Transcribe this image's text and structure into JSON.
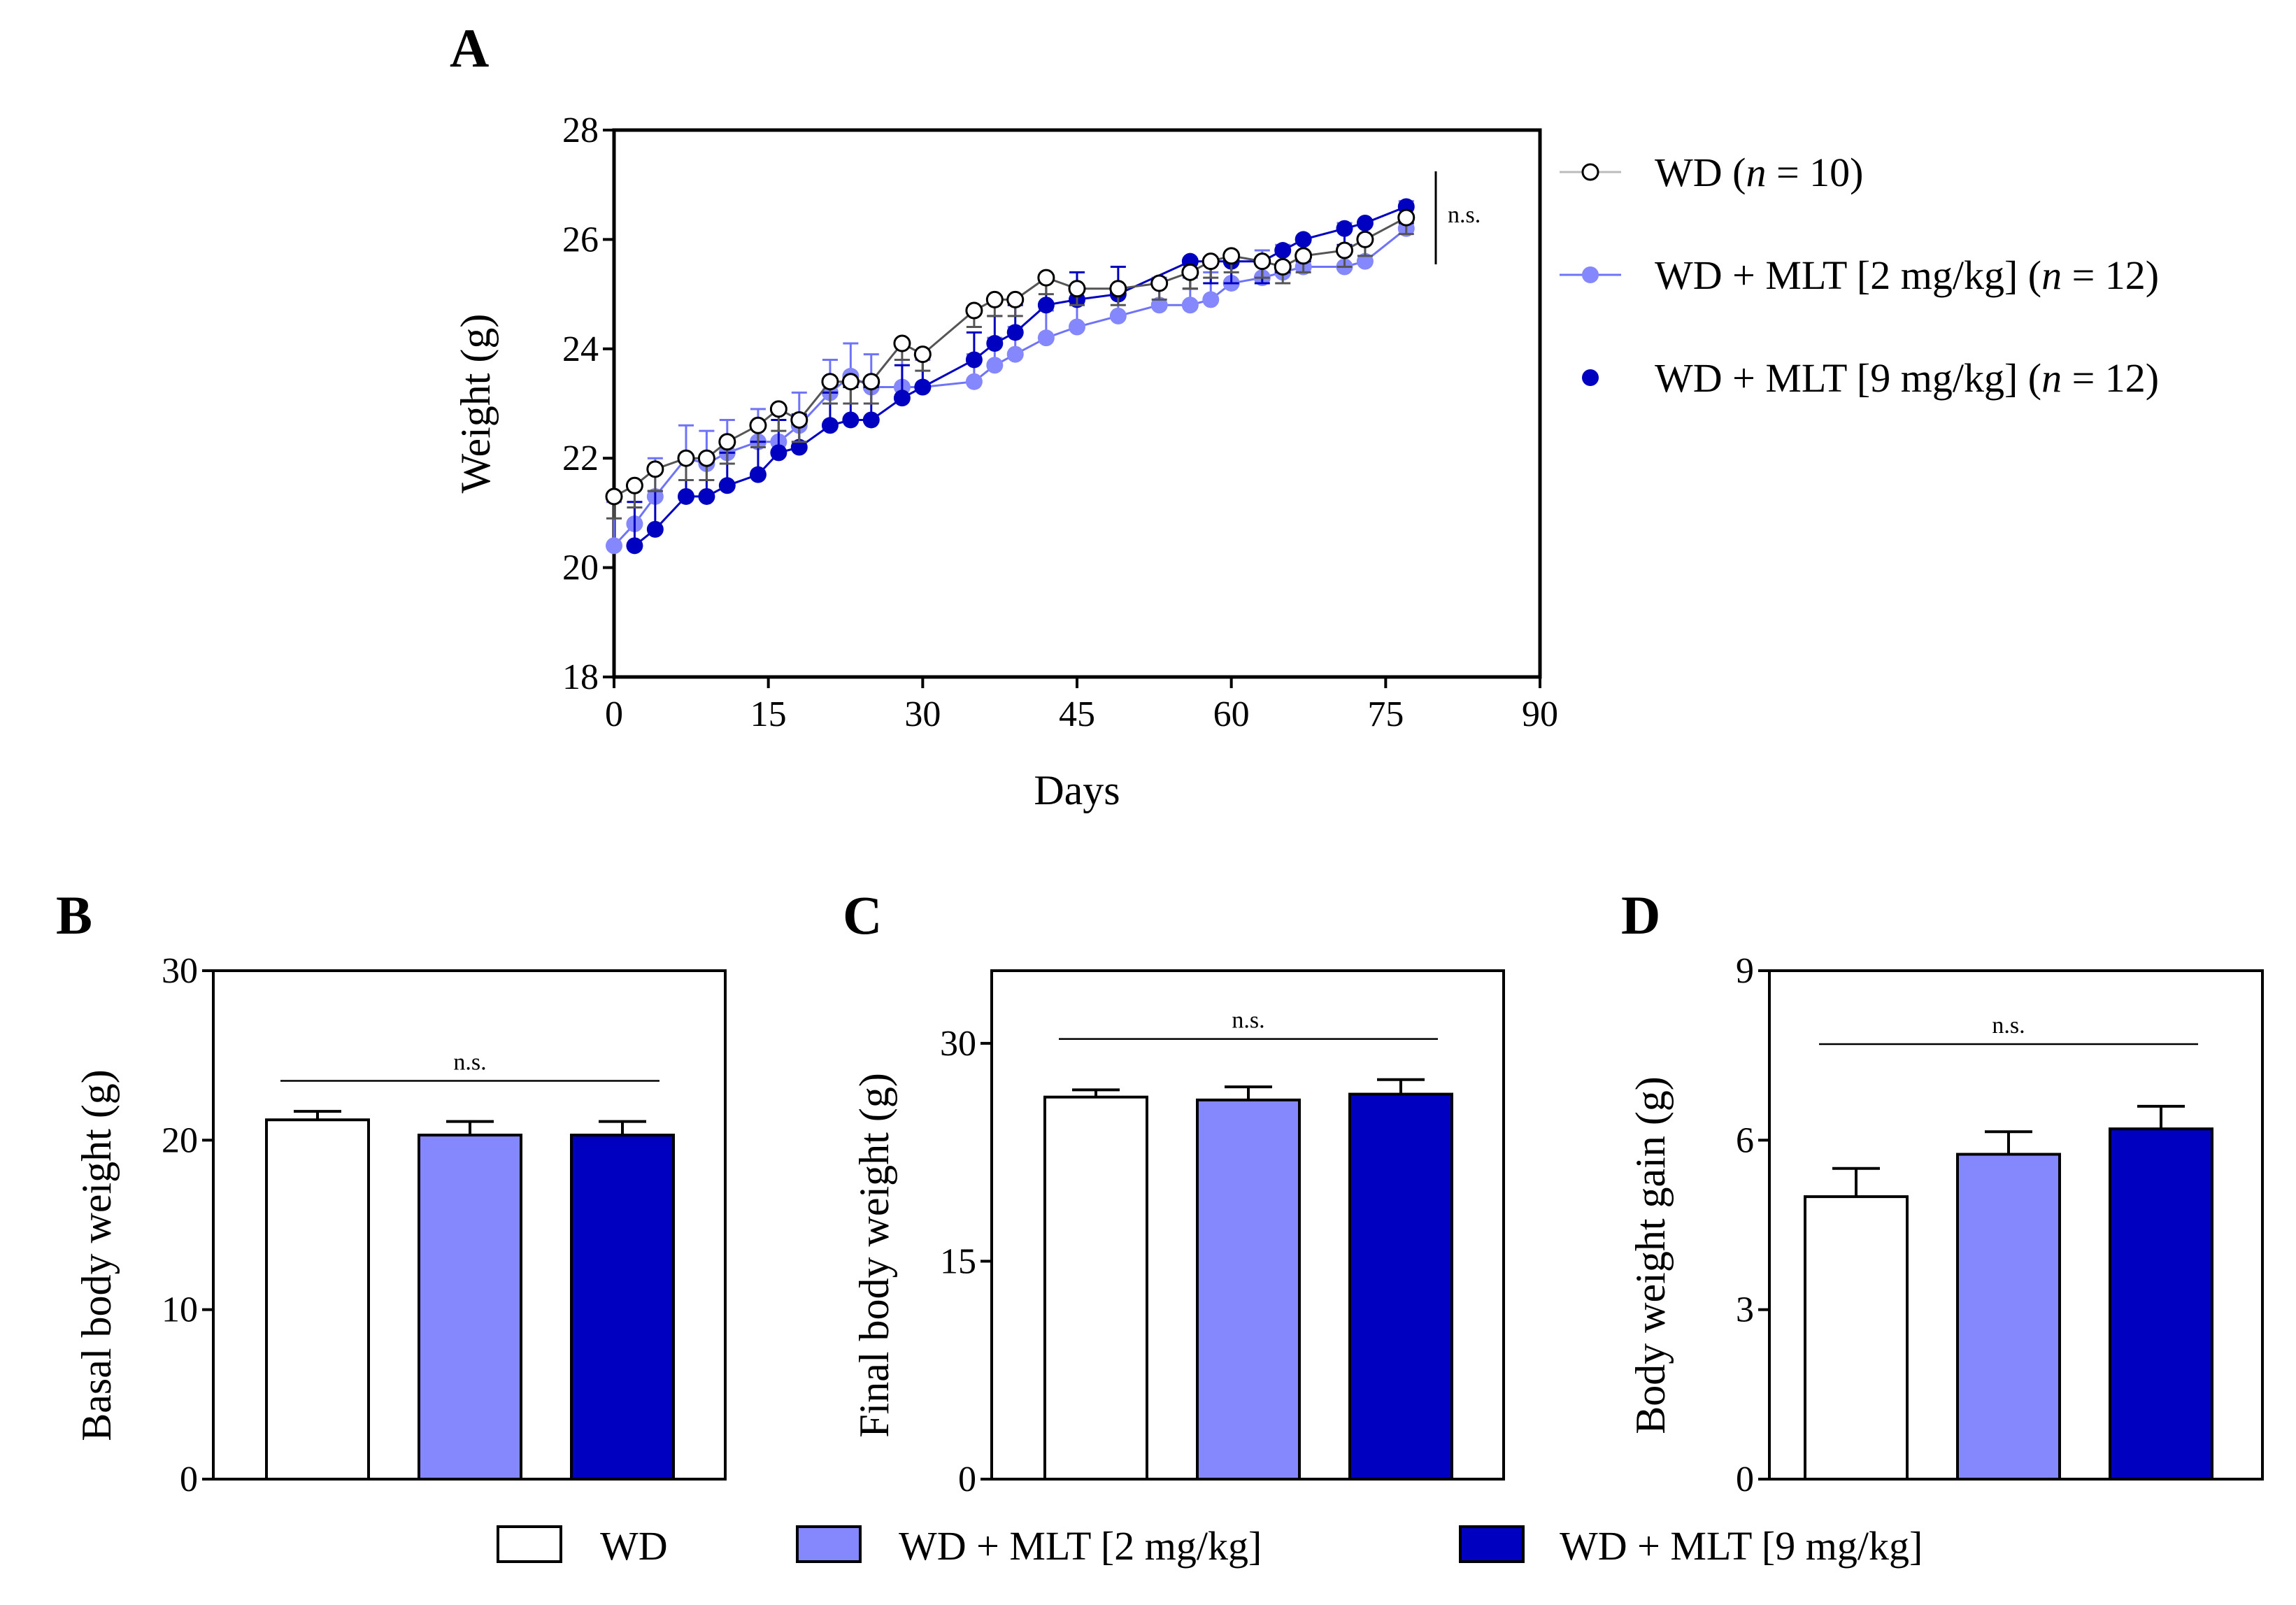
{
  "colors": {
    "wd": "#ffffff",
    "mlt2": "#8488fc",
    "mlt9": "#0000c0",
    "mlt2_line": "#6f73f8",
    "axis": "#000000"
  },
  "chart_data": [
    {
      "id": "A",
      "type": "line",
      "panel_label": "A",
      "title": "",
      "xlabel": "Days",
      "ylabel": "Weight (g)",
      "xlim": [
        0,
        90
      ],
      "ylim": [
        18,
        28
      ],
      "xticks": [
        0,
        15,
        30,
        45,
        60,
        75,
        90
      ],
      "yticks": [
        18,
        20,
        22,
        24,
        26,
        28
      ],
      "annotation": "n.s.",
      "legend_position": "right",
      "series": [
        {
          "key": "wd",
          "name": "WD (n = 10)",
          "legend_parts": [
            "WD (",
            "n",
            " = 10)"
          ],
          "marker": "open-circle",
          "x": [
            0,
            2,
            4,
            7,
            9,
            11,
            14,
            16,
            18,
            21,
            23,
            25,
            28,
            30,
            35,
            37,
            39,
            42,
            45,
            49,
            53,
            56,
            58,
            60,
            63,
            65,
            67,
            71,
            73,
            77
          ],
          "y": [
            21.3,
            21.5,
            21.8,
            22.0,
            22.0,
            22.3,
            22.6,
            22.9,
            22.7,
            23.4,
            23.4,
            23.4,
            24.1,
            23.9,
            24.7,
            24.9,
            24.9,
            25.3,
            25.1,
            25.1,
            25.2,
            25.4,
            25.6,
            25.7,
            25.6,
            25.5,
            25.7,
            25.8,
            26.0,
            26.4
          ],
          "err": [
            0.4,
            0.4,
            0.4,
            0.4,
            0.4,
            0.4,
            0.4,
            0.4,
            0.4,
            0.4,
            0.4,
            0.4,
            0.3,
            0.3,
            0.3,
            0.3,
            0.3,
            0.3,
            0.3,
            0.3,
            0.3,
            0.3,
            0.3,
            0.3,
            0.3,
            0.3,
            0.3,
            0.3,
            0.3,
            0.3
          ]
        },
        {
          "key": "mlt2",
          "name": "WD + MLT [2 mg/kg] (n = 12)",
          "legend_parts": [
            "WD + MLT [2 mg/kg] (",
            "n",
            " = 12)"
          ],
          "marker": "filled-circle",
          "x": [
            0,
            2,
            4,
            7,
            9,
            11,
            14,
            16,
            18,
            21,
            23,
            25,
            28,
            30,
            35,
            37,
            39,
            42,
            45,
            49,
            53,
            56,
            58,
            60,
            63,
            65,
            67,
            71,
            73,
            77
          ],
          "y": [
            20.4,
            20.8,
            21.3,
            22.0,
            21.9,
            22.1,
            22.3,
            22.3,
            22.6,
            23.2,
            23.5,
            23.3,
            23.3,
            23.3,
            23.4,
            23.7,
            23.9,
            24.2,
            24.4,
            24.6,
            24.8,
            24.8,
            24.9,
            25.2,
            25.3,
            25.4,
            25.5,
            25.5,
            25.6,
            26.2
          ],
          "err": [
            0.8,
            0.7,
            0.7,
            0.6,
            0.6,
            0.6,
            0.6,
            0.6,
            0.6,
            0.6,
            0.6,
            0.6,
            0.5,
            0.5,
            0.5,
            0.5,
            0.5,
            0.5,
            0.5,
            0.5,
            0.5,
            0.5,
            0.5,
            0.5,
            0.5,
            0.5,
            0.5,
            0.8,
            0.7,
            0.5
          ]
        },
        {
          "key": "mlt9",
          "name": "WD + MLT [9 mg/kg] (n = 12)",
          "legend_parts": [
            "WD + MLT [9 mg/kg] (",
            "n",
            " = 12)"
          ],
          "marker": "filled-circle",
          "x": [
            2,
            4,
            7,
            9,
            11,
            14,
            16,
            18,
            21,
            23,
            25,
            28,
            30,
            35,
            37,
            39,
            42,
            45,
            49,
            56,
            58,
            60,
            63,
            65,
            67,
            71,
            73,
            77
          ],
          "y": [
            20.4,
            20.7,
            21.3,
            21.3,
            21.5,
            21.7,
            22.1,
            22.2,
            22.6,
            22.7,
            22.7,
            23.1,
            23.3,
            23.8,
            24.1,
            24.3,
            24.8,
            24.9,
            25.0,
            25.6,
            25.6,
            25.6,
            25.6,
            25.8,
            26.0,
            26.2,
            26.3,
            26.6
          ],
          "err": [
            0.8,
            0.7,
            0.7,
            0.7,
            0.6,
            0.6,
            0.6,
            0.6,
            0.6,
            0.6,
            0.6,
            0.6,
            0.6,
            0.5,
            0.5,
            0.5,
            0.5,
            0.5,
            0.5,
            0.5,
            0.4,
            0.4,
            0.4,
            0.4,
            0.4,
            0.3,
            0.3,
            0.3
          ]
        }
      ]
    },
    {
      "id": "B",
      "type": "bar",
      "panel_label": "B",
      "title": "",
      "xlabel": "",
      "ylabel": "Basal body weight (g)",
      "ylim": [
        0,
        30
      ],
      "yticks": [
        0,
        10,
        20,
        30
      ],
      "categories": [
        "WD",
        "WD + MLT [2 mg/kg]",
        "WD + MLT [9 mg/kg]"
      ],
      "keys": [
        "wd",
        "mlt2",
        "mlt9"
      ],
      "values": [
        21.2,
        20.3,
        20.3
      ],
      "errors": [
        0.5,
        0.8,
        0.8
      ],
      "annotation": "n.s.",
      "bracket_y": 23.5
    },
    {
      "id": "C",
      "type": "bar",
      "panel_label": "C",
      "title": "",
      "xlabel": "",
      "ylabel": "Final body weight (g)",
      "ylim": [
        0,
        35
      ],
      "yticks": [
        0,
        15,
        30
      ],
      "categories": [
        "WD",
        "WD + MLT [2 mg/kg]",
        "WD + MLT [9 mg/kg]"
      ],
      "keys": [
        "wd",
        "mlt2",
        "mlt9"
      ],
      "values": [
        26.3,
        26.1,
        26.5
      ],
      "errors": [
        0.5,
        0.9,
        1.0
      ],
      "annotation": "n.s.",
      "bracket_y": 30.3
    },
    {
      "id": "D",
      "type": "bar",
      "panel_label": "D",
      "title": "",
      "xlabel": "",
      "ylabel": "Body weight gain (g)",
      "ylim": [
        0,
        9
      ],
      "yticks": [
        0,
        3,
        6,
        9
      ],
      "categories": [
        "WD",
        "WD + MLT [2 mg/kg]",
        "WD + MLT [9 mg/kg]"
      ],
      "keys": [
        "wd",
        "mlt2",
        "mlt9"
      ],
      "values": [
        5.0,
        5.75,
        6.2
      ],
      "errors": [
        0.5,
        0.4,
        0.4
      ],
      "annotation": "n.s.",
      "bracket_y": 7.7
    }
  ],
  "bottom_legend": [
    {
      "key": "wd",
      "label": "WD"
    },
    {
      "key": "mlt2",
      "label": "WD + MLT [2 mg/kg]"
    },
    {
      "key": "mlt9",
      "label": "WD + MLT [9 mg/kg]"
    }
  ]
}
